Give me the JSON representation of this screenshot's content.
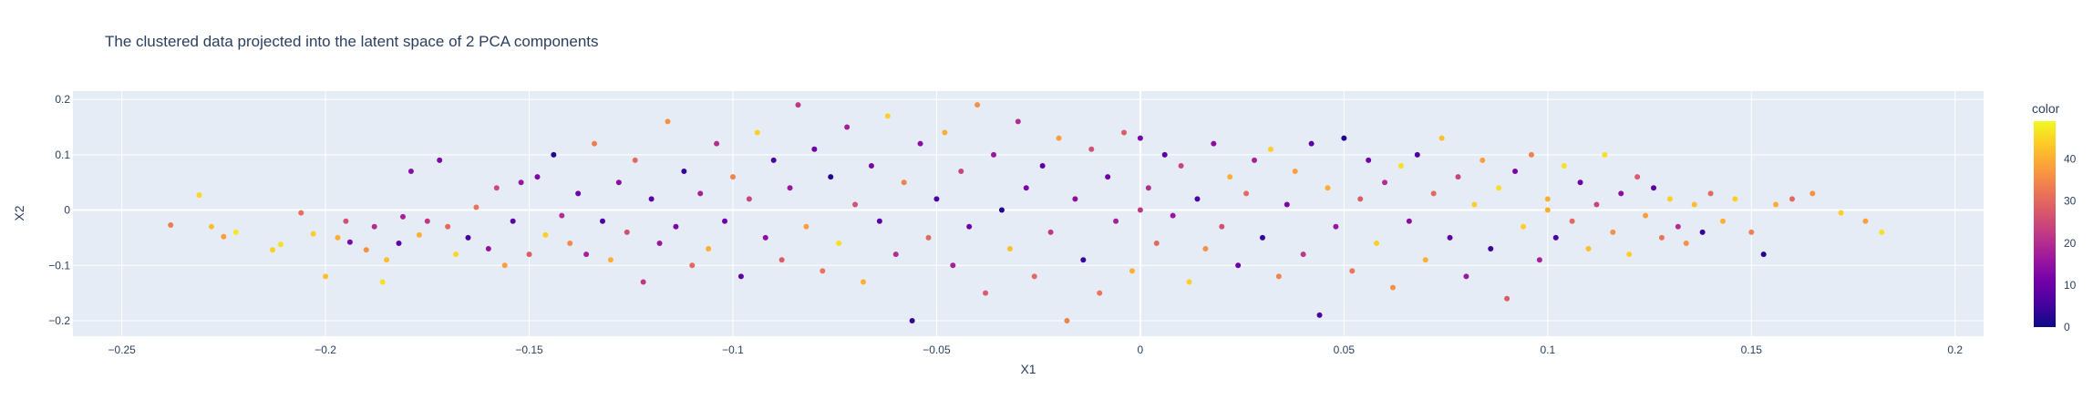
{
  "chart_data": {
    "type": "scatter",
    "title": "The clustered data projected into the latent space of 2 PCA components",
    "xlabel": "X1",
    "ylabel": "X2",
    "xlim": [
      -0.262,
      0.207
    ],
    "ylim": [
      -0.228,
      0.215
    ],
    "xticks": [
      -0.25,
      -0.2,
      -0.15,
      -0.1,
      -0.05,
      0,
      0.05,
      0.1,
      0.15,
      0.2
    ],
    "xtick_labels": [
      "−0.25",
      "−0.2",
      "−0.15",
      "−0.1",
      "−0.05",
      "0",
      "0.05",
      "0.1",
      "0.15",
      "0.2"
    ],
    "yticks": [
      -0.2,
      -0.1,
      0,
      0.1,
      0.2
    ],
    "ytick_labels": [
      "−0.2",
      "−0.1",
      "0",
      "0.1",
      "0.2"
    ],
    "grid": true,
    "colorbar": {
      "title": "color",
      "range": [
        0,
        49
      ],
      "ticks": [
        0,
        10,
        20,
        30,
        40
      ],
      "colorscale": [
        "#0d0887",
        "#46039f",
        "#7201a8",
        "#9c179e",
        "#bd3786",
        "#d8576b",
        "#ed7953",
        "#fb9f3a",
        "#fdca26",
        "#f0f921"
      ]
    },
    "points": [
      [
        -0.238,
        -0.027,
        33
      ],
      [
        -0.231,
        0.027,
        45
      ],
      [
        -0.228,
        -0.03,
        42
      ],
      [
        -0.225,
        -0.048,
        38
      ],
      [
        -0.222,
        -0.04,
        47
      ],
      [
        -0.213,
        -0.072,
        44
      ],
      [
        -0.211,
        -0.062,
        46
      ],
      [
        -0.206,
        -0.005,
        31
      ],
      [
        -0.203,
        -0.043,
        44
      ],
      [
        -0.2,
        -0.12,
        42
      ],
      [
        -0.197,
        -0.05,
        40
      ],
      [
        -0.195,
        -0.02,
        26
      ],
      [
        -0.194,
        -0.058,
        12
      ],
      [
        -0.19,
        -0.072,
        36
      ],
      [
        -0.188,
        -0.03,
        20
      ],
      [
        -0.186,
        -0.13,
        46
      ],
      [
        -0.185,
        -0.09,
        42
      ],
      [
        -0.182,
        -0.06,
        8
      ],
      [
        -0.181,
        -0.012,
        18
      ],
      [
        -0.179,
        0.07,
        14
      ],
      [
        -0.177,
        -0.045,
        40
      ],
      [
        -0.175,
        -0.02,
        22
      ],
      [
        -0.172,
        0.09,
        12
      ],
      [
        -0.17,
        -0.03,
        30
      ],
      [
        -0.168,
        -0.08,
        45
      ],
      [
        -0.165,
        -0.05,
        5
      ],
      [
        -0.163,
        0.005,
        32
      ],
      [
        -0.16,
        -0.07,
        15
      ],
      [
        -0.158,
        0.04,
        25
      ],
      [
        -0.156,
        -0.1,
        38
      ],
      [
        -0.154,
        -0.02,
        8
      ],
      [
        -0.152,
        0.05,
        16
      ],
      [
        -0.15,
        -0.08,
        28
      ],
      [
        -0.148,
        0.06,
        12
      ],
      [
        -0.146,
        -0.045,
        44
      ],
      [
        -0.144,
        0.1,
        2
      ],
      [
        -0.142,
        -0.01,
        20
      ],
      [
        -0.14,
        -0.06,
        35
      ],
      [
        -0.138,
        0.03,
        10
      ],
      [
        -0.136,
        -0.08,
        18
      ],
      [
        -0.134,
        0.12,
        33
      ],
      [
        -0.132,
        -0.02,
        6
      ],
      [
        -0.13,
        -0.09,
        40
      ],
      [
        -0.128,
        0.05,
        14
      ],
      [
        -0.126,
        -0.04,
        26
      ],
      [
        -0.124,
        0.09,
        30
      ],
      [
        -0.122,
        -0.13,
        22
      ],
      [
        -0.12,
        0.02,
        8
      ],
      [
        -0.118,
        -0.06,
        16
      ],
      [
        -0.116,
        0.16,
        36
      ],
      [
        -0.114,
        -0.03,
        12
      ],
      [
        -0.112,
        0.07,
        4
      ],
      [
        -0.11,
        -0.1,
        30
      ],
      [
        -0.108,
        0.03,
        18
      ],
      [
        -0.106,
        -0.07,
        40
      ],
      [
        -0.104,
        0.12,
        20
      ],
      [
        -0.102,
        -0.02,
        10
      ],
      [
        -0.1,
        0.06,
        34
      ],
      [
        -0.098,
        -0.12,
        8
      ],
      [
        -0.096,
        0.02,
        24
      ],
      [
        -0.094,
        0.14,
        44
      ],
      [
        -0.092,
        -0.05,
        14
      ],
      [
        -0.09,
        0.09,
        6
      ],
      [
        -0.088,
        -0.09,
        28
      ],
      [
        -0.086,
        0.04,
        16
      ],
      [
        -0.084,
        0.19,
        22
      ],
      [
        -0.082,
        -0.03,
        38
      ],
      [
        -0.08,
        0.11,
        10
      ],
      [
        -0.078,
        -0.11,
        32
      ],
      [
        -0.076,
        0.06,
        2
      ],
      [
        -0.074,
        -0.06,
        46
      ],
      [
        -0.072,
        0.15,
        18
      ],
      [
        -0.07,
        0.01,
        26
      ],
      [
        -0.068,
        -0.13,
        40
      ],
      [
        -0.066,
        0.08,
        12
      ],
      [
        -0.064,
        -0.02,
        8
      ],
      [
        -0.062,
        0.17,
        44
      ],
      [
        -0.06,
        -0.08,
        20
      ],
      [
        -0.058,
        0.05,
        34
      ],
      [
        -0.056,
        -0.2,
        4
      ],
      [
        -0.054,
        0.12,
        14
      ],
      [
        -0.052,
        -0.05,
        30
      ],
      [
        -0.05,
        0.02,
        6
      ],
      [
        -0.048,
        0.14,
        40
      ],
      [
        -0.046,
        -0.1,
        18
      ],
      [
        -0.044,
        0.07,
        24
      ],
      [
        -0.042,
        -0.03,
        10
      ],
      [
        -0.04,
        0.19,
        36
      ],
      [
        -0.038,
        -0.15,
        28
      ],
      [
        -0.036,
        0.1,
        16
      ],
      [
        -0.034,
        0.0,
        2
      ],
      [
        -0.032,
        -0.07,
        42
      ],
      [
        -0.03,
        0.16,
        20
      ],
      [
        -0.028,
        0.04,
        12
      ],
      [
        -0.026,
        -0.12,
        30
      ],
      [
        -0.024,
        0.08,
        8
      ],
      [
        -0.022,
        -0.04,
        22
      ],
      [
        -0.02,
        0.13,
        38
      ],
      [
        -0.018,
        -0.2,
        34
      ],
      [
        -0.016,
        0.02,
        14
      ],
      [
        -0.014,
        -0.09,
        4
      ],
      [
        -0.012,
        0.11,
        26
      ],
      [
        -0.01,
        -0.15,
        32
      ],
      [
        -0.008,
        0.06,
        10
      ],
      [
        -0.006,
        -0.02,
        18
      ],
      [
        -0.004,
        0.14,
        28
      ],
      [
        -0.002,
        -0.11,
        40
      ],
      [
        0.0,
        0.13,
        12
      ],
      [
        0.002,
        0.04,
        20
      ],
      [
        0.004,
        -0.06,
        30
      ],
      [
        0.006,
        0.1,
        8
      ],
      [
        0.008,
        -0.01,
        16
      ],
      [
        0.01,
        0.08,
        24
      ],
      [
        0.012,
        -0.13,
        44
      ],
      [
        0.014,
        0.02,
        6
      ],
      [
        0.016,
        -0.07,
        36
      ],
      [
        0.018,
        0.12,
        14
      ],
      [
        0.02,
        -0.03,
        26
      ],
      [
        0.022,
        0.06,
        40
      ],
      [
        0.024,
        -0.1,
        10
      ],
      [
        0.026,
        0.03,
        30
      ],
      [
        0.028,
        0.09,
        18
      ],
      [
        0.03,
        -0.05,
        4
      ],
      [
        0.032,
        0.11,
        44
      ],
      [
        0.034,
        -0.12,
        34
      ],
      [
        0.036,
        0.01,
        12
      ],
      [
        0.038,
        0.07,
        38
      ],
      [
        0.04,
        -0.08,
        22
      ],
      [
        0.042,
        0.12,
        8
      ],
      [
        0.044,
        -0.19,
        6
      ],
      [
        0.046,
        0.04,
        40
      ],
      [
        0.048,
        -0.03,
        16
      ],
      [
        0.05,
        0.13,
        2
      ],
      [
        0.052,
        -0.11,
        32
      ],
      [
        0.054,
        0.02,
        28
      ],
      [
        0.056,
        0.09,
        10
      ],
      [
        0.058,
        -0.06,
        44
      ],
      [
        0.06,
        0.05,
        20
      ],
      [
        0.062,
        -0.14,
        36
      ],
      [
        0.064,
        0.08,
        46
      ],
      [
        0.066,
        -0.02,
        14
      ],
      [
        0.068,
        0.1,
        6
      ],
      [
        0.07,
        -0.09,
        40
      ],
      [
        0.072,
        0.03,
        30
      ],
      [
        0.074,
        0.13,
        42
      ],
      [
        0.076,
        -0.05,
        8
      ],
      [
        0.078,
        0.06,
        24
      ],
      [
        0.08,
        -0.12,
        16
      ],
      [
        0.082,
        0.01,
        44
      ],
      [
        0.084,
        0.09,
        38
      ],
      [
        0.086,
        -0.07,
        4
      ],
      [
        0.088,
        0.04,
        46
      ],
      [
        0.09,
        -0.16,
        28
      ],
      [
        0.092,
        0.07,
        12
      ],
      [
        0.094,
        -0.03,
        44
      ],
      [
        0.096,
        0.1,
        34
      ],
      [
        0.098,
        -0.09,
        18
      ],
      [
        0.1,
        0.02,
        40
      ],
      [
        0.102,
        -0.05,
        6
      ],
      [
        0.104,
        0.08,
        46
      ],
      [
        0.106,
        -0.02,
        30
      ],
      [
        0.108,
        0.05,
        10
      ],
      [
        0.11,
        -0.07,
        42
      ],
      [
        0.112,
        0.01,
        24
      ],
      [
        0.114,
        0.1,
        46
      ],
      [
        0.116,
        -0.04,
        36
      ],
      [
        0.118,
        0.03,
        14
      ],
      [
        0.12,
        -0.08,
        44
      ],
      [
        0.122,
        0.06,
        28
      ],
      [
        0.124,
        -0.01,
        38
      ],
      [
        0.126,
        0.04,
        8
      ],
      [
        0.128,
        -0.05,
        32
      ],
      [
        0.13,
        0.02,
        44
      ],
      [
        0.132,
        -0.03,
        20
      ],
      [
        0.134,
        -0.06,
        36
      ],
      [
        0.136,
        0.01,
        42
      ],
      [
        0.138,
        -0.04,
        4
      ],
      [
        0.14,
        0.03,
        30
      ],
      [
        0.143,
        -0.02,
        40
      ],
      [
        0.146,
        0.02,
        44
      ],
      [
        0.15,
        -0.04,
        34
      ],
      [
        0.153,
        -0.08,
        2
      ],
      [
        0.156,
        0.01,
        40
      ],
      [
        0.16,
        0.02,
        30
      ],
      [
        0.165,
        0.03,
        36
      ],
      [
        0.172,
        -0.005,
        44
      ],
      [
        0.178,
        -0.02,
        38
      ],
      [
        0.182,
        -0.04,
        46
      ],
      [
        0.0,
        0.0,
        22
      ],
      [
        0.1,
        0.0,
        40
      ]
    ]
  }
}
